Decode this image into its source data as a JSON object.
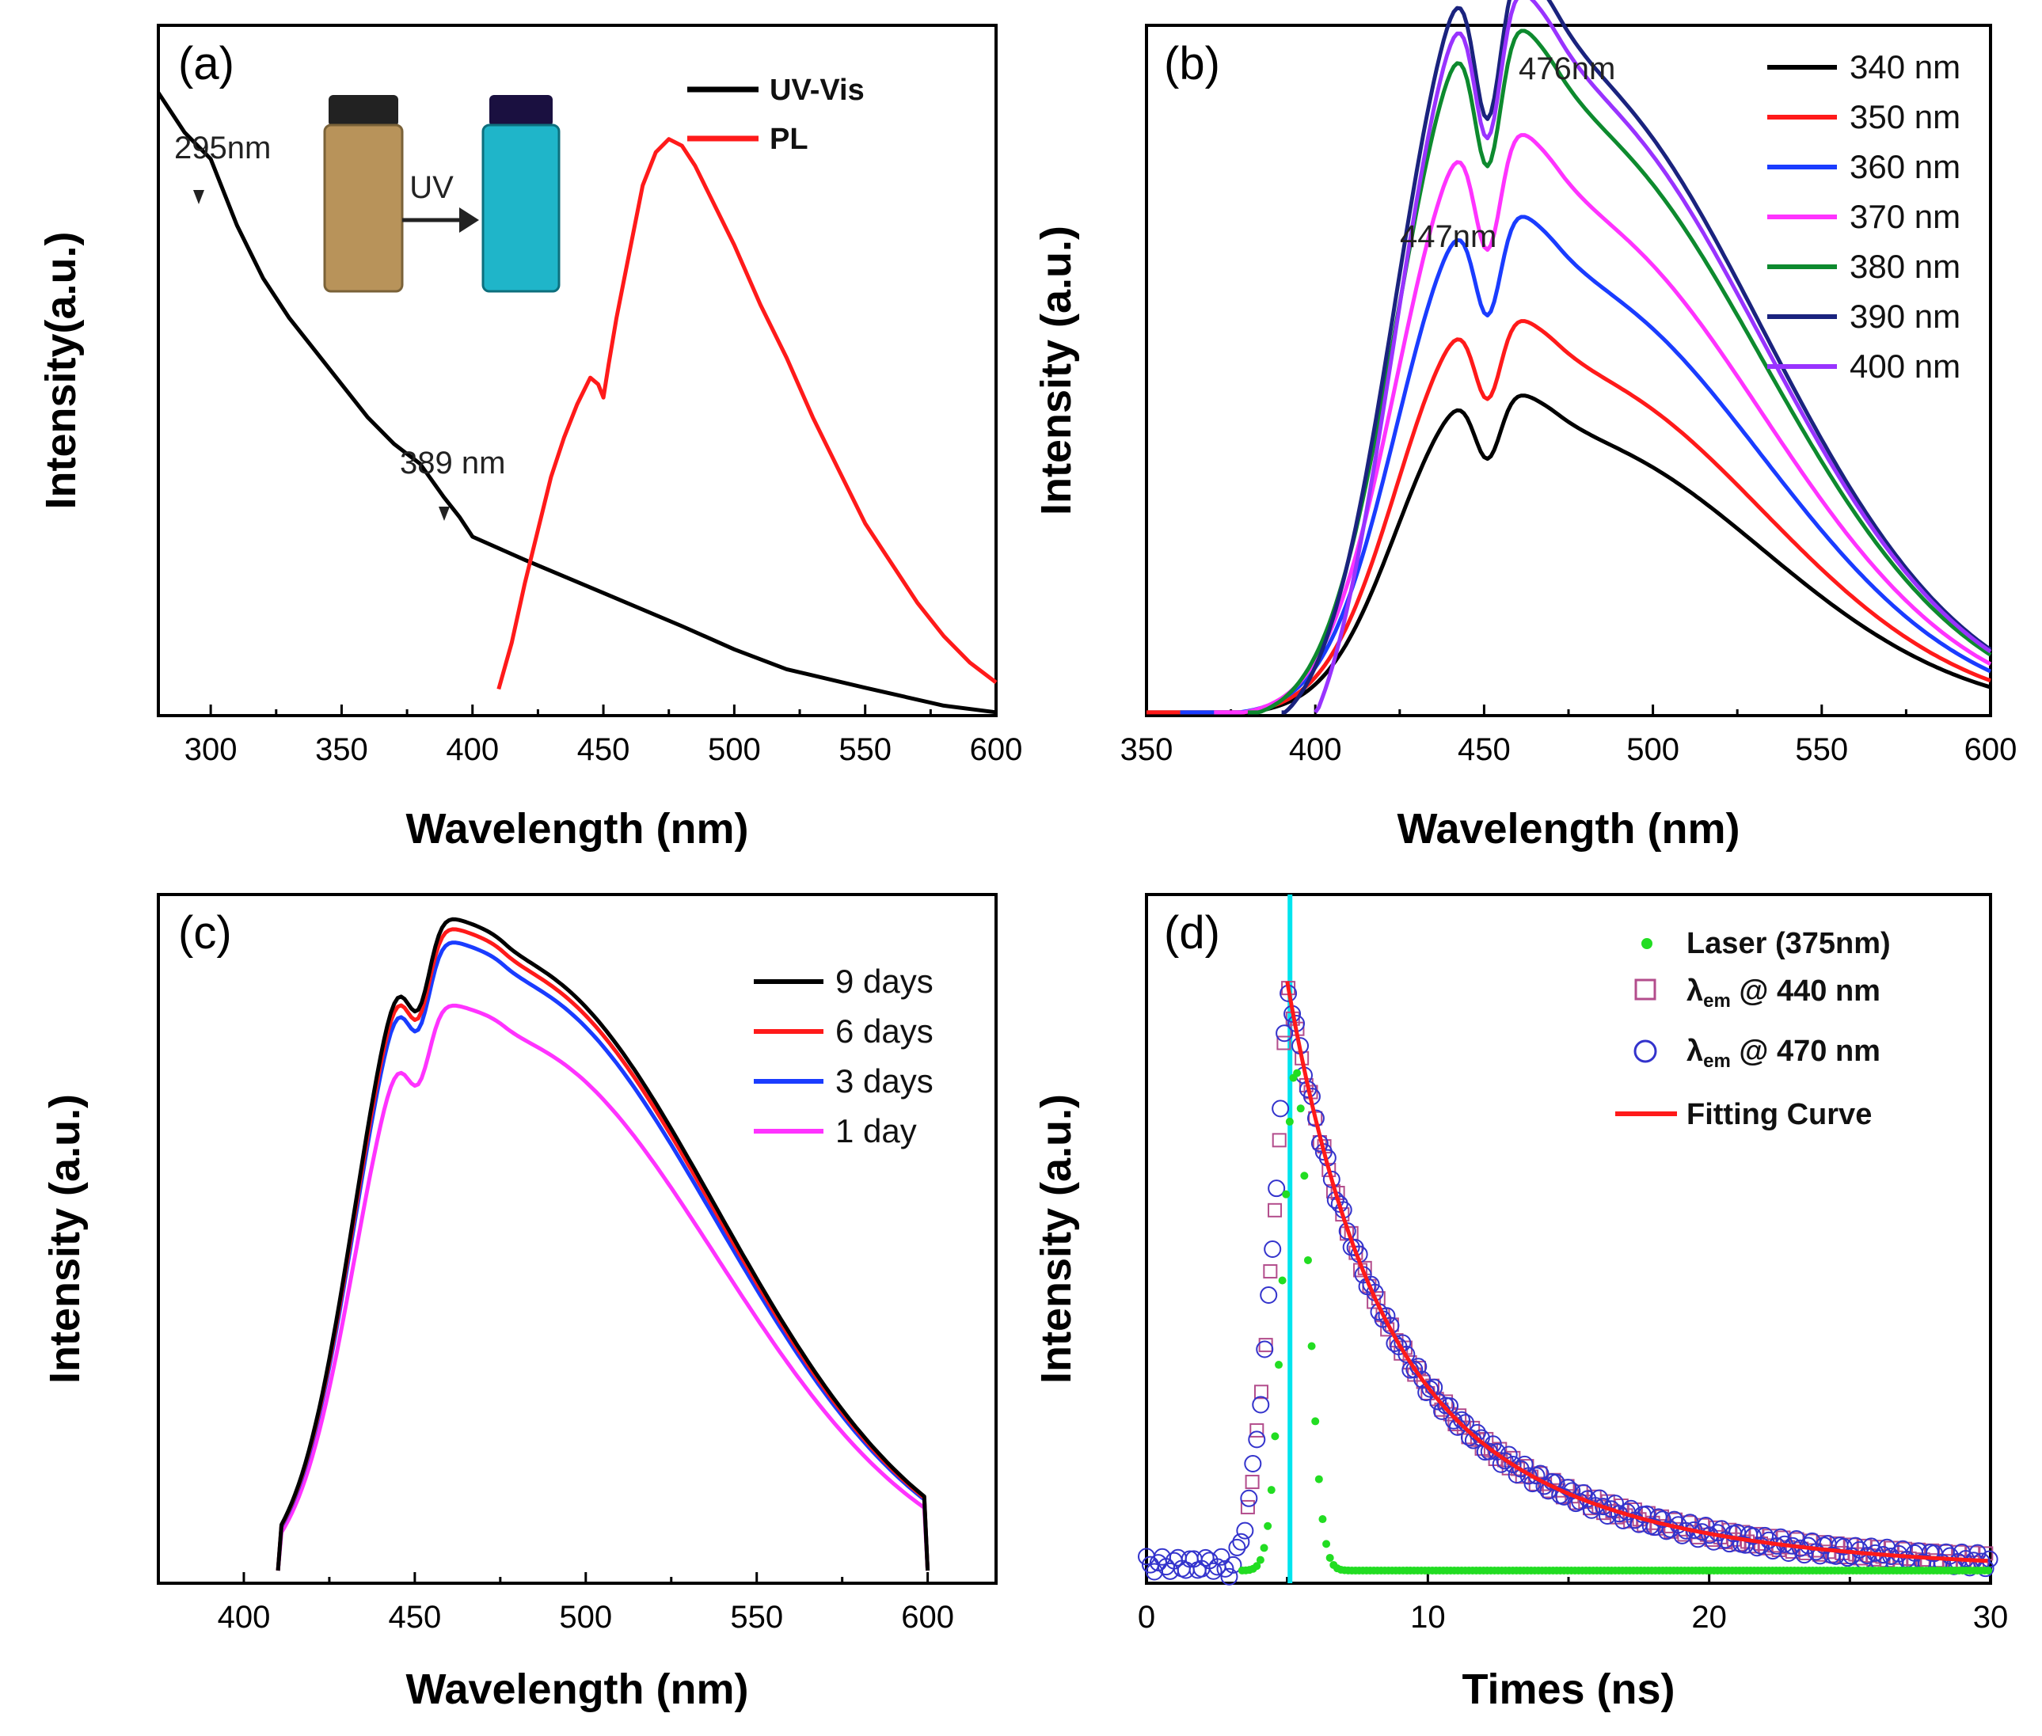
{
  "figure": {
    "panels": [
      "(a)",
      "(b)",
      "(c)",
      "(d)"
    ]
  },
  "chart_data": [
    {
      "id": "a",
      "type": "line",
      "panel_label": "(a)",
      "xlabel": "Wavelength (nm)",
      "ylabel": "Intensity(a.u.)",
      "xlim": [
        280,
        600
      ],
      "xticks": [
        300,
        350,
        400,
        450,
        500,
        550,
        600
      ],
      "ylim": [
        0,
        1
      ],
      "legend": "top-right",
      "inset": {
        "label": "UV",
        "description_icons": [
          "vial-daylight",
          "vial-uv"
        ],
        "colors": {
          "daylight": "#b8935a",
          "uv": "#1fb5c9"
        }
      },
      "annotations": [
        {
          "text": "295nm",
          "x": 295,
          "y": 0.86
        },
        {
          "text": "389 nm",
          "x": 389,
          "y": 0.33
        }
      ],
      "series": [
        {
          "name": "UV-Vis",
          "color": "#000000",
          "x": [
            280,
            290,
            295,
            300,
            310,
            320,
            330,
            340,
            350,
            360,
            370,
            380,
            389,
            395,
            400,
            420,
            450,
            480,
            500,
            520,
            550,
            580,
            600
          ],
          "y": [
            0.94,
            0.88,
            0.86,
            0.84,
            0.74,
            0.66,
            0.6,
            0.55,
            0.5,
            0.45,
            0.41,
            0.38,
            0.33,
            0.3,
            0.27,
            0.235,
            0.185,
            0.135,
            0.1,
            0.07,
            0.042,
            0.015,
            0.005
          ]
        },
        {
          "name": "PL",
          "color": "#ff1a1a",
          "x": [
            410,
            415,
            420,
            425,
            430,
            435,
            440,
            445,
            448,
            450,
            452,
            455,
            460,
            465,
            470,
            475,
            480,
            485,
            490,
            500,
            510,
            520,
            530,
            540,
            550,
            560,
            570,
            580,
            590,
            600
          ],
          "y": [
            0.04,
            0.11,
            0.2,
            0.28,
            0.36,
            0.42,
            0.47,
            0.51,
            0.5,
            0.48,
            0.53,
            0.6,
            0.7,
            0.8,
            0.85,
            0.87,
            0.86,
            0.83,
            0.79,
            0.71,
            0.62,
            0.54,
            0.45,
            0.37,
            0.29,
            0.23,
            0.17,
            0.12,
            0.08,
            0.05
          ]
        }
      ]
    },
    {
      "id": "b",
      "type": "line",
      "panel_label": "(b)",
      "xlabel": "Wavelength (nm)",
      "ylabel": "Intensity (a.u.)",
      "xlim": [
        350,
        600
      ],
      "xticks": [
        350,
        400,
        450,
        500,
        550,
        600
      ],
      "ylim": [
        0,
        1
      ],
      "legend": "top-right",
      "annotations": [
        {
          "text": "476nm",
          "x": 476,
          "y": 1.0
        },
        {
          "text": "447nm",
          "x": 447,
          "y": 0.76
        }
      ],
      "series": [
        {
          "name": "340 nm",
          "color": "#000000",
          "start": 340,
          "peak": 0.43
        },
        {
          "name": "350 nm",
          "color": "#ff1a1a",
          "start": 350,
          "peak": 0.53
        },
        {
          "name": "360 nm",
          "color": "#1a3cff",
          "start": 360,
          "peak": 0.67
        },
        {
          "name": "370 nm",
          "color": "#ff33ff",
          "start": 370,
          "peak": 0.78
        },
        {
          "name": "380 nm",
          "color": "#0d8a2e",
          "start": 380,
          "peak": 0.92
        },
        {
          "name": "390 nm",
          "color": "#1a237e",
          "start": 390,
          "peak": 1.0
        },
        {
          "name": "400 nm",
          "color": "#9933ff",
          "start": 400,
          "peak": 0.97
        }
      ]
    },
    {
      "id": "c",
      "type": "line",
      "panel_label": "(c)",
      "xlabel": "Wavelength (nm)",
      "ylabel": "Intensity (a.u.)",
      "xlim": [
        375,
        620
      ],
      "xticks": [
        400,
        450,
        500,
        550,
        600
      ],
      "ylim": [
        0,
        1
      ],
      "legend": "top-right",
      "series": [
        {
          "name": "9 days",
          "color": "#000000",
          "peak": 1.0
        },
        {
          "name": "6 days",
          "color": "#ff1a1a",
          "peak": 0.985
        },
        {
          "name": "3 days",
          "color": "#1a3cff",
          "peak": 0.965
        },
        {
          "name": "1 day",
          "color": "#ff33ff",
          "peak": 0.87
        }
      ]
    },
    {
      "id": "d",
      "type": "scatter",
      "panel_label": "(d)",
      "xlabel": "Times (ns)",
      "ylabel": "Intensity (a.u.)",
      "xlim": [
        0,
        30
      ],
      "xticks": [
        0,
        10,
        20,
        30
      ],
      "ylim": [
        0,
        1
      ],
      "legend": "top-right",
      "vline": {
        "x": 5.1,
        "color": "#00e5ee"
      },
      "series": [
        {
          "name": "Laser (375nm)",
          "marker": "dot",
          "color": "#22dd22"
        },
        {
          "name_main": "λ",
          "name_sub": "em",
          "name_rest": " @ 440 nm",
          "marker": "square",
          "color": "#b34d8c"
        },
        {
          "name_main": "λ",
          "name_sub": "em",
          "name_rest": " @ 470 nm",
          "marker": "circle",
          "color": "#3333cc"
        },
        {
          "name": "Fitting Curve",
          "marker": "line",
          "color": "#ff1a1a"
        }
      ]
    }
  ]
}
